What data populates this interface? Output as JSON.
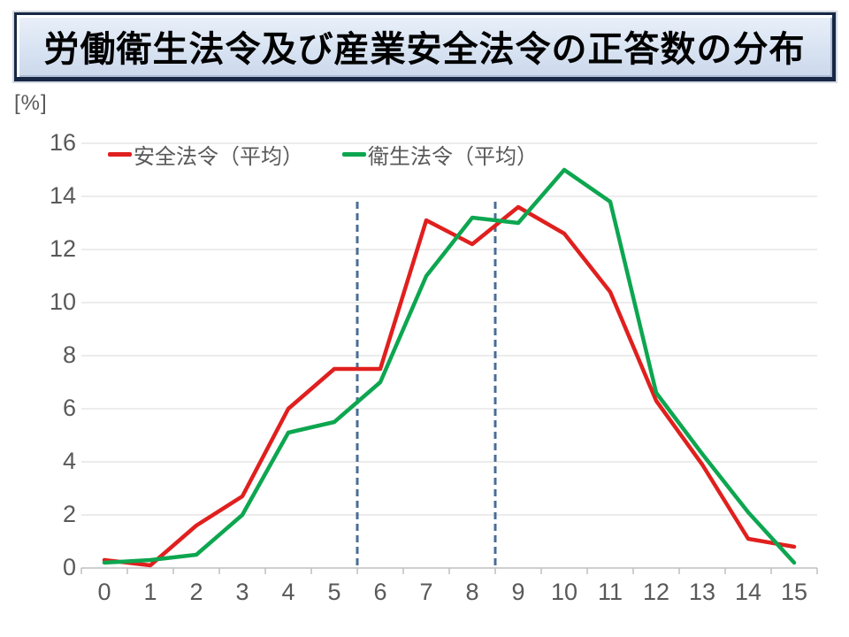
{
  "title": "労働衛生法令及び産業安全法令の正答数の分布",
  "y_axis_unit": "[%]",
  "legend": [
    {
      "label": "安全法令（平均）",
      "color": "#e0201e"
    },
    {
      "label": "衛生法令（平均）",
      "color": "#0da650"
    }
  ],
  "chart_data": {
    "type": "line",
    "title": "労働衛生法令及び産業安全法令の正答数の分布",
    "xlabel": "",
    "ylabel": "[%]",
    "x": [
      0,
      1,
      2,
      3,
      4,
      5,
      6,
      7,
      8,
      9,
      10,
      11,
      12,
      13,
      14,
      15
    ],
    "series": [
      {
        "name": "安全法令（平均）",
        "color": "#e0201e",
        "values": [
          0.3,
          0.1,
          1.6,
          2.7,
          6.0,
          7.5,
          7.5,
          13.1,
          12.2,
          13.6,
          12.6,
          10.4,
          6.3,
          3.9,
          1.1,
          0.8
        ]
      },
      {
        "name": "衛生法令（平均）",
        "color": "#0da650",
        "values": [
          0.2,
          0.3,
          0.5,
          2.0,
          5.1,
          5.5,
          7.0,
          11.0,
          13.2,
          13.0,
          15.0,
          13.8,
          6.6,
          4.3,
          2.1,
          0.2
        ]
      }
    ],
    "reference_lines": {
      "color": "#4a6d96",
      "style": "dashed",
      "items": [
        {
          "x": 5.5,
          "top": 13.8
        },
        {
          "x": 8.5,
          "top": 13.8
        }
      ]
    },
    "ylim": [
      0,
      16
    ],
    "ytick_step": 2,
    "grid": true,
    "legend_position": "top-left-inside",
    "colors": {
      "grid": "#d9d9d9",
      "axis": "#bfbfbf",
      "tick_label": "#595959"
    }
  }
}
